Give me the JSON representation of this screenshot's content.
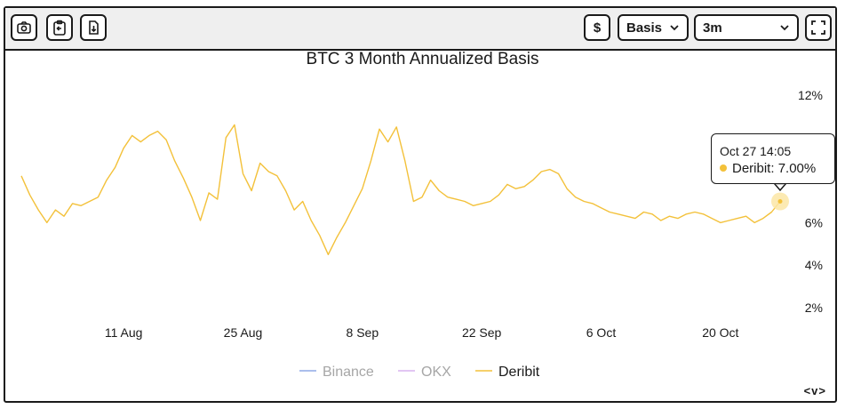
{
  "toolbar": {
    "currency_label": "$",
    "metric_select": "Basis",
    "range_select": "3m"
  },
  "tooltip": {
    "time": "Oct 27 14:05",
    "series": "Deribit",
    "value": "7.00%"
  },
  "colors": {
    "binance": "#8fa8e6",
    "okx": "#d9b3ef",
    "deribit": "#f3c13a",
    "highlight": "#fbe6a6"
  },
  "chart_data": {
    "type": "line",
    "title": "BTC 3 Month Annualized Basis",
    "xlabel": "",
    "ylabel": "",
    "x_tick_labels": [
      "11 Aug",
      "25 Aug",
      "8 Sep",
      "22 Sep",
      "6 Oct",
      "20 Oct"
    ],
    "y_tick_labels": [
      "12%",
      "6%",
      "4%",
      "2%"
    ],
    "ylim": [
      1.5,
      12.5
    ],
    "grid": false,
    "legend_position": "bottom",
    "x_start": "2025-07-30",
    "x_end": "2025-10-27",
    "series": [
      {
        "name": "Binance",
        "visible": false,
        "values": []
      },
      {
        "name": "OKX",
        "visible": false,
        "values": []
      },
      {
        "name": "Deribit",
        "visible": true,
        "x": [
          "2025-07-30",
          "2025-07-31",
          "2025-08-01",
          "2025-08-02",
          "2025-08-03",
          "2025-08-04",
          "2025-08-05",
          "2025-08-06",
          "2025-08-07",
          "2025-08-08",
          "2025-08-09",
          "2025-08-10",
          "2025-08-11",
          "2025-08-12",
          "2025-08-13",
          "2025-08-14",
          "2025-08-15",
          "2025-08-16",
          "2025-08-17",
          "2025-08-18",
          "2025-08-19",
          "2025-08-20",
          "2025-08-21",
          "2025-08-22",
          "2025-08-23",
          "2025-08-24",
          "2025-08-25",
          "2025-08-26",
          "2025-08-27",
          "2025-08-28",
          "2025-08-29",
          "2025-08-30",
          "2025-08-31",
          "2025-09-01",
          "2025-09-02",
          "2025-09-03",
          "2025-09-04",
          "2025-09-05",
          "2025-09-06",
          "2025-09-07",
          "2025-09-08",
          "2025-09-09",
          "2025-09-10",
          "2025-09-11",
          "2025-09-12",
          "2025-09-13",
          "2025-09-14",
          "2025-09-15",
          "2025-09-16",
          "2025-09-17",
          "2025-09-18",
          "2025-09-19",
          "2025-09-20",
          "2025-09-21",
          "2025-09-22",
          "2025-09-23",
          "2025-09-24",
          "2025-09-25",
          "2025-09-26",
          "2025-09-27",
          "2025-09-28",
          "2025-09-29",
          "2025-09-30",
          "2025-10-01",
          "2025-10-02",
          "2025-10-03",
          "2025-10-04",
          "2025-10-05",
          "2025-10-06",
          "2025-10-07",
          "2025-10-08",
          "2025-10-09",
          "2025-10-10",
          "2025-10-11",
          "2025-10-12",
          "2025-10-13",
          "2025-10-14",
          "2025-10-15",
          "2025-10-16",
          "2025-10-17",
          "2025-10-18",
          "2025-10-19",
          "2025-10-20",
          "2025-10-21",
          "2025-10-22",
          "2025-10-23",
          "2025-10-24",
          "2025-10-25",
          "2025-10-26",
          "2025-10-27"
        ],
        "values": [
          8.2,
          7.3,
          6.6,
          6.0,
          6.6,
          6.3,
          6.9,
          6.8,
          7.0,
          7.2,
          8.0,
          8.6,
          9.5,
          10.1,
          9.8,
          10.1,
          10.3,
          9.9,
          8.9,
          8.1,
          7.2,
          6.1,
          7.4,
          7.1,
          10.0,
          10.6,
          8.3,
          7.5,
          8.8,
          8.4,
          8.2,
          7.5,
          6.6,
          7.0,
          6.1,
          5.4,
          4.5,
          5.3,
          6.0,
          6.8,
          7.6,
          8.9,
          10.4,
          9.8,
          10.5,
          8.9,
          7.0,
          7.2,
          8.0,
          7.5,
          7.2,
          7.1,
          7.0,
          6.8,
          6.9,
          7.0,
          7.3,
          7.8,
          7.6,
          7.7,
          8.0,
          8.4,
          8.5,
          8.3,
          7.6,
          7.2,
          7.0,
          6.9,
          6.7,
          6.5,
          6.4,
          6.3,
          6.2,
          6.5,
          6.4,
          6.1,
          6.3,
          6.2,
          6.4,
          6.5,
          6.4,
          6.2,
          6.0,
          6.1,
          6.2,
          6.3,
          6.0,
          6.2,
          6.5,
          7.0
        ]
      }
    ]
  }
}
